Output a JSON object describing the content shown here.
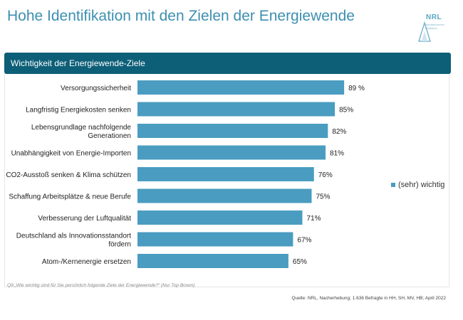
{
  "page": {
    "title": "Hohe Identifikation mit den Zielen der Energiewende",
    "logo": {
      "name": "NRL",
      "sub_line1": "Norddeutsches",
      "sub_line2": "Reallabor"
    },
    "section_header": "Wichtigkeit der Energiewende-Ziele",
    "footnote": "Q9:„Wie wichtig sind für Sie persönlich folgende Ziele der Energiewende?“ (Nur Top Boxen)",
    "source": "Quelle: NRL, Nacherhebung; 1.636 Befragte in HH, SH, MV, HB; April 2022"
  },
  "colors": {
    "bar": "#4a9cc0",
    "header": "#0d5f78",
    "title": "#3d8fb1"
  },
  "chart_data": {
    "type": "bar",
    "orientation": "horizontal",
    "title": "Wichtigkeit der Energiewende-Ziele",
    "categories": [
      [
        "Versorgungssicherheit"
      ],
      [
        "Langfristig Energiekosten senken"
      ],
      [
        "Lebensgrundlage nachfolgende",
        "Generationen"
      ],
      [
        "Unabhängigkeit von Energie-Importen"
      ],
      [
        "CO2-Ausstoß senken & Klima schützen"
      ],
      [
        "Schaffung Arbeitsplätze & neue Berufe"
      ],
      [
        "Verbesserung der Luftqualität"
      ],
      [
        "Deutschland als Innovationsstandort",
        "fördern"
      ],
      [
        "Atom-/Kernenergie ersetzen"
      ]
    ],
    "series": [
      {
        "name": "(sehr) wichtig",
        "values": [
          89,
          85,
          82,
          81,
          76,
          75,
          71,
          67,
          65
        ],
        "labels": [
          "89 %",
          "85%",
          "82%",
          "81%",
          "76%",
          "75%",
          "71%",
          "67%",
          "65%"
        ]
      }
    ],
    "xlim": [
      0,
      100
    ],
    "legend": "right",
    "grid": false
  }
}
